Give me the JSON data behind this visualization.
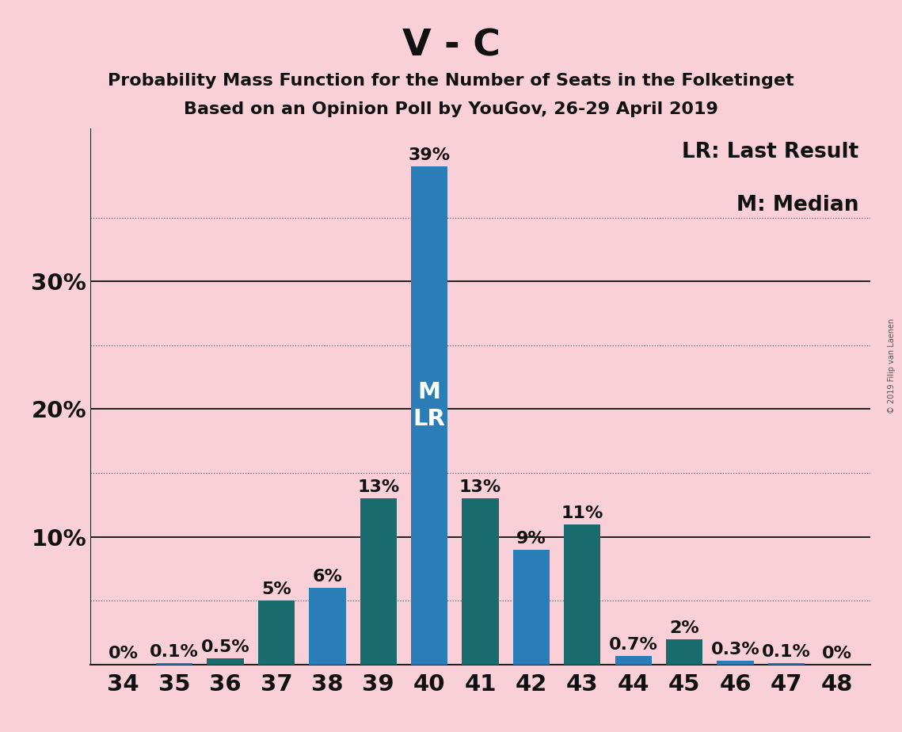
{
  "title": "V - C",
  "subtitle1": "Probability Mass Function for the Number of Seats in the Folketinget",
  "subtitle2": "Based on an Opinion Poll by YouGov, 26-29 April 2019",
  "watermark": "© 2019 Filip van Laenen",
  "legend_line1": "LR: Last Result",
  "legend_line2": "M: Median",
  "categories": [
    34,
    35,
    36,
    37,
    38,
    39,
    40,
    41,
    42,
    43,
    44,
    45,
    46,
    47,
    48
  ],
  "values": [
    0.0,
    0.1,
    0.5,
    5.0,
    6.0,
    13.0,
    39.0,
    13.0,
    9.0,
    11.0,
    0.7,
    2.0,
    0.3,
    0.1,
    0.0
  ],
  "labels": [
    "0%",
    "0.1%",
    "0.5%",
    "5%",
    "6%",
    "13%",
    "39%",
    "13%",
    "9%",
    "11%",
    "0.7%",
    "2%",
    "0.3%",
    "0.1%",
    "0%"
  ],
  "bar_colors": [
    "#2b7db8",
    "#2b7db8",
    "#1a6b6b",
    "#1a6b6b",
    "#2b7db8",
    "#1a6b6b",
    "#2b7db8",
    "#1a6b6b",
    "#2b7db8",
    "#1a6b6b",
    "#2b7db8",
    "#1a6b6b",
    "#2b7db8",
    "#2b7db8",
    "#2b7db8"
  ],
  "median_seat": 40,
  "lr_seat": 40,
  "background_color": "#f9d0d8",
  "bar_label_color": "#111111",
  "mlr_label_color": "#ffffff",
  "dotted_grid": [
    5,
    15,
    25,
    35
  ],
  "solid_grid": [
    10,
    20,
    30
  ],
  "ylim": [
    0,
    42
  ],
  "ytick_positions": [
    10,
    20,
    30
  ],
  "ytick_labels": [
    "10%",
    "20%",
    "30%"
  ],
  "title_fontsize": 34,
  "subtitle_fontsize": 16,
  "axis_fontsize": 21,
  "bar_label_fontsize": 16,
  "mlr_fontsize": 21,
  "legend_fontsize": 19,
  "watermark_fontsize": 7
}
